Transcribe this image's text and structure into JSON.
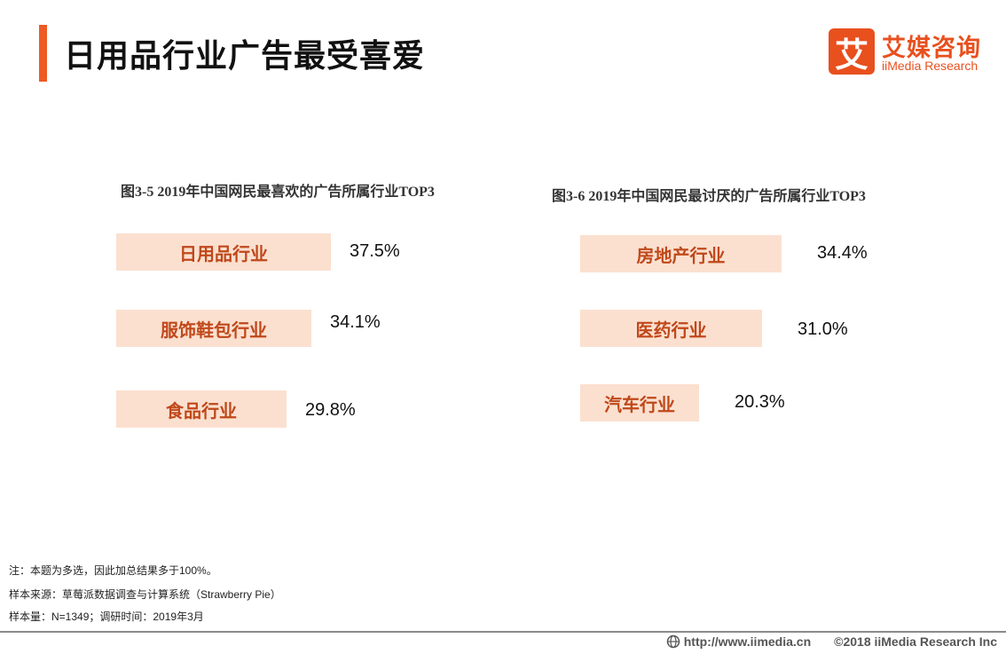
{
  "page": {
    "title": "日用品行业广告最受喜爱"
  },
  "logo": {
    "mark": "艾",
    "name_cn": "艾媒咨询",
    "name_en": "iiMedia Research"
  },
  "chart_data": [
    {
      "type": "bar",
      "title": "图3-5 2019年中国网民最喜欢的广告所属行业TOP3",
      "categories": [
        "日用品行业",
        "服饰鞋包行业",
        "食品行业"
      ],
      "values": [
        37.5,
        34.1,
        29.8
      ],
      "value_labels": [
        "37.5%",
        "34.1%",
        "29.8%"
      ],
      "unit": "%",
      "orientation": "horizontal",
      "xlabel": "",
      "ylabel": ""
    },
    {
      "type": "bar",
      "title": "图3-6 2019年中国网民最讨厌的广告所属行业TOP3",
      "categories": [
        "房地产行业",
        "医药行业",
        "汽车行业"
      ],
      "values": [
        34.4,
        31.0,
        20.3
      ],
      "value_labels": [
        "34.4%",
        "31.0%",
        "20.3%"
      ],
      "unit": "%",
      "orientation": "horizontal",
      "xlabel": "",
      "ylabel": ""
    }
  ],
  "notes": {
    "note": "注：本题为多选，因此加总结果多于100%。",
    "source": "样本来源：草莓派数据调查与计算系统（Strawberry Pie）",
    "sample": "样本量：N=1349；调研时间：2019年3月"
  },
  "footer": {
    "url": "http://www.iimedia.cn",
    "copyright": "©2018  iiMedia Research  Inc"
  },
  "colors": {
    "accent": "#ee5a24",
    "bar_fill": "#fbe0d0",
    "bar_label": "#c0481a"
  }
}
